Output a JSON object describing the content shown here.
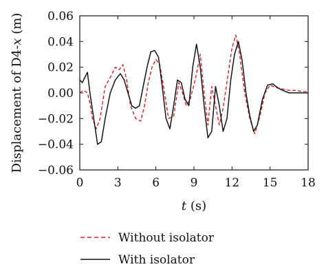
{
  "chart_data": {
    "type": "line",
    "xlabel_var": "t",
    "xlabel_unit": " (s)",
    "ylabel_prefix": "Displacement of D4-",
    "ylabel_var": "x",
    "ylabel_unit": " (m)",
    "xlim": [
      0,
      18
    ],
    "ylim": [
      -0.06,
      0.06
    ],
    "x_ticks": [
      0,
      3,
      6,
      9,
      12,
      15,
      18
    ],
    "y_ticks": [
      -0.06,
      -0.04,
      -0.02,
      0.0,
      0.02,
      0.04,
      0.06
    ],
    "x_tick_labels": [
      "0",
      "3",
      "6",
      "9",
      "12",
      "15",
      "18"
    ],
    "y_tick_labels": [
      "−0.06",
      "−0.04",
      "−0.02",
      "0.00",
      "0.02",
      "0.04",
      "0.06"
    ],
    "grid": false,
    "legend_position": "bottom-center",
    "series": [
      {
        "name": "Without isolator",
        "color": "#cc2222",
        "dash": "dashed",
        "x": [
          0,
          0.3,
          0.6,
          0.8,
          1.0,
          1.3,
          1.6,
          2.0,
          2.4,
          2.8,
          3.1,
          3.4,
          3.7,
          4.0,
          4.4,
          4.8,
          5.1,
          5.4,
          5.7,
          6.0,
          6.3,
          6.6,
          7.0,
          7.4,
          7.8,
          8.1,
          8.4,
          8.7,
          9.1,
          9.5,
          9.8,
          10.1,
          10.4,
          10.7,
          11.0,
          11.3,
          11.7,
          12.0,
          12.3,
          12.6,
          13.0,
          13.4,
          13.8,
          14.2,
          14.6,
          15.0,
          15.5,
          16.0,
          16.5,
          17.0,
          17.5,
          18.0
        ],
        "y": [
          0.0,
          0.002,
          0.0,
          -0.008,
          -0.02,
          -0.028,
          -0.02,
          0.005,
          0.012,
          0.02,
          0.018,
          0.022,
          0.01,
          -0.01,
          -0.02,
          -0.022,
          -0.01,
          0.008,
          0.02,
          0.026,
          0.022,
          0.005,
          -0.02,
          -0.018,
          0.008,
          0.0,
          -0.01,
          -0.005,
          0.01,
          0.03,
          0.0,
          -0.025,
          0.005,
          -0.01,
          -0.025,
          -0.012,
          0.015,
          0.035,
          0.045,
          0.03,
          0.0,
          -0.02,
          -0.032,
          -0.018,
          0.0,
          0.006,
          0.004,
          0.003,
          0.002,
          0.002,
          0.001,
          0.001
        ]
      },
      {
        "name": "With isolator",
        "color": "#111111",
        "dash": "solid",
        "x": [
          0,
          0.2,
          0.4,
          0.6,
          0.8,
          1.1,
          1.4,
          1.7,
          2.0,
          2.4,
          2.8,
          3.2,
          3.5,
          3.8,
          4.1,
          4.4,
          4.7,
          5.0,
          5.3,
          5.6,
          5.9,
          6.2,
          6.5,
          6.8,
          7.1,
          7.4,
          7.7,
          8.0,
          8.3,
          8.6,
          8.9,
          9.2,
          9.5,
          9.8,
          10.1,
          10.4,
          10.7,
          11.0,
          11.3,
          11.6,
          11.9,
          12.2,
          12.5,
          12.8,
          13.1,
          13.4,
          13.7,
          14.0,
          14.4,
          14.8,
          15.2,
          15.6,
          16.0,
          16.5,
          17.0,
          17.5,
          18.0
        ],
        "y": [
          0.01,
          0.008,
          0.012,
          0.016,
          0.0,
          -0.02,
          -0.04,
          -0.038,
          -0.02,
          0.0,
          0.01,
          0.015,
          0.01,
          0.0,
          -0.01,
          -0.012,
          -0.01,
          0.005,
          0.02,
          0.032,
          0.033,
          0.028,
          0.005,
          -0.02,
          -0.028,
          -0.01,
          0.01,
          0.008,
          -0.005,
          -0.01,
          0.02,
          0.038,
          0.02,
          -0.01,
          -0.035,
          -0.03,
          0.005,
          -0.01,
          -0.03,
          -0.02,
          0.01,
          0.03,
          0.04,
          0.025,
          0.0,
          -0.018,
          -0.03,
          -0.025,
          -0.005,
          0.006,
          0.007,
          0.004,
          0.002,
          0.0,
          0.0,
          0.0,
          0.0
        ]
      }
    ]
  }
}
